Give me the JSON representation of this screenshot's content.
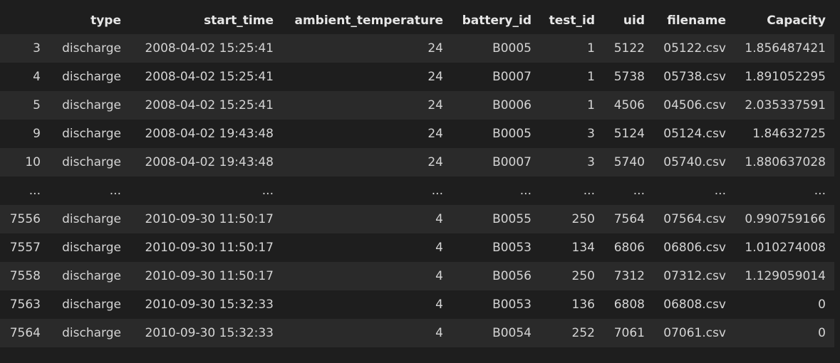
{
  "table": {
    "columns": [
      "type",
      "start_time",
      "ambient_temperature",
      "battery_id",
      "test_id",
      "uid",
      "filename",
      "Capacity"
    ],
    "rows": [
      [
        "3",
        "discharge",
        "2008-04-02 15:25:41",
        "24",
        "B0005",
        "1",
        "5122",
        "05122.csv",
        "1.856487421"
      ],
      [
        "4",
        "discharge",
        "2008-04-02 15:25:41",
        "24",
        "B0007",
        "1",
        "5738",
        "05738.csv",
        "1.891052295"
      ],
      [
        "5",
        "discharge",
        "2008-04-02 15:25:41",
        "24",
        "B0006",
        "1",
        "4506",
        "04506.csv",
        "2.035337591"
      ],
      [
        "9",
        "discharge",
        "2008-04-02 19:43:48",
        "24",
        "B0005",
        "3",
        "5124",
        "05124.csv",
        "1.84632725"
      ],
      [
        "10",
        "discharge",
        "2008-04-02 19:43:48",
        "24",
        "B0007",
        "3",
        "5740",
        "05740.csv",
        "1.880637028"
      ],
      [
        "...",
        "...",
        "...",
        "...",
        "...",
        "...",
        "...",
        "...",
        "..."
      ],
      [
        "7556",
        "discharge",
        "2010-09-30 11:50:17",
        "4",
        "B0055",
        "250",
        "7564",
        "07564.csv",
        "0.990759166"
      ],
      [
        "7557",
        "discharge",
        "2010-09-30 11:50:17",
        "4",
        "B0053",
        "134",
        "6806",
        "06806.csv",
        "1.010274008"
      ],
      [
        "7558",
        "discharge",
        "2010-09-30 11:50:17",
        "4",
        "B0056",
        "250",
        "7312",
        "07312.csv",
        "1.129059014"
      ],
      [
        "7563",
        "discharge",
        "2010-09-30 15:32:33",
        "4",
        "B0053",
        "136",
        "6808",
        "06808.csv",
        "0"
      ],
      [
        "7564",
        "discharge",
        "2010-09-30 15:32:33",
        "4",
        "B0054",
        "252",
        "7061",
        "07061.csv",
        "0"
      ]
    ]
  }
}
